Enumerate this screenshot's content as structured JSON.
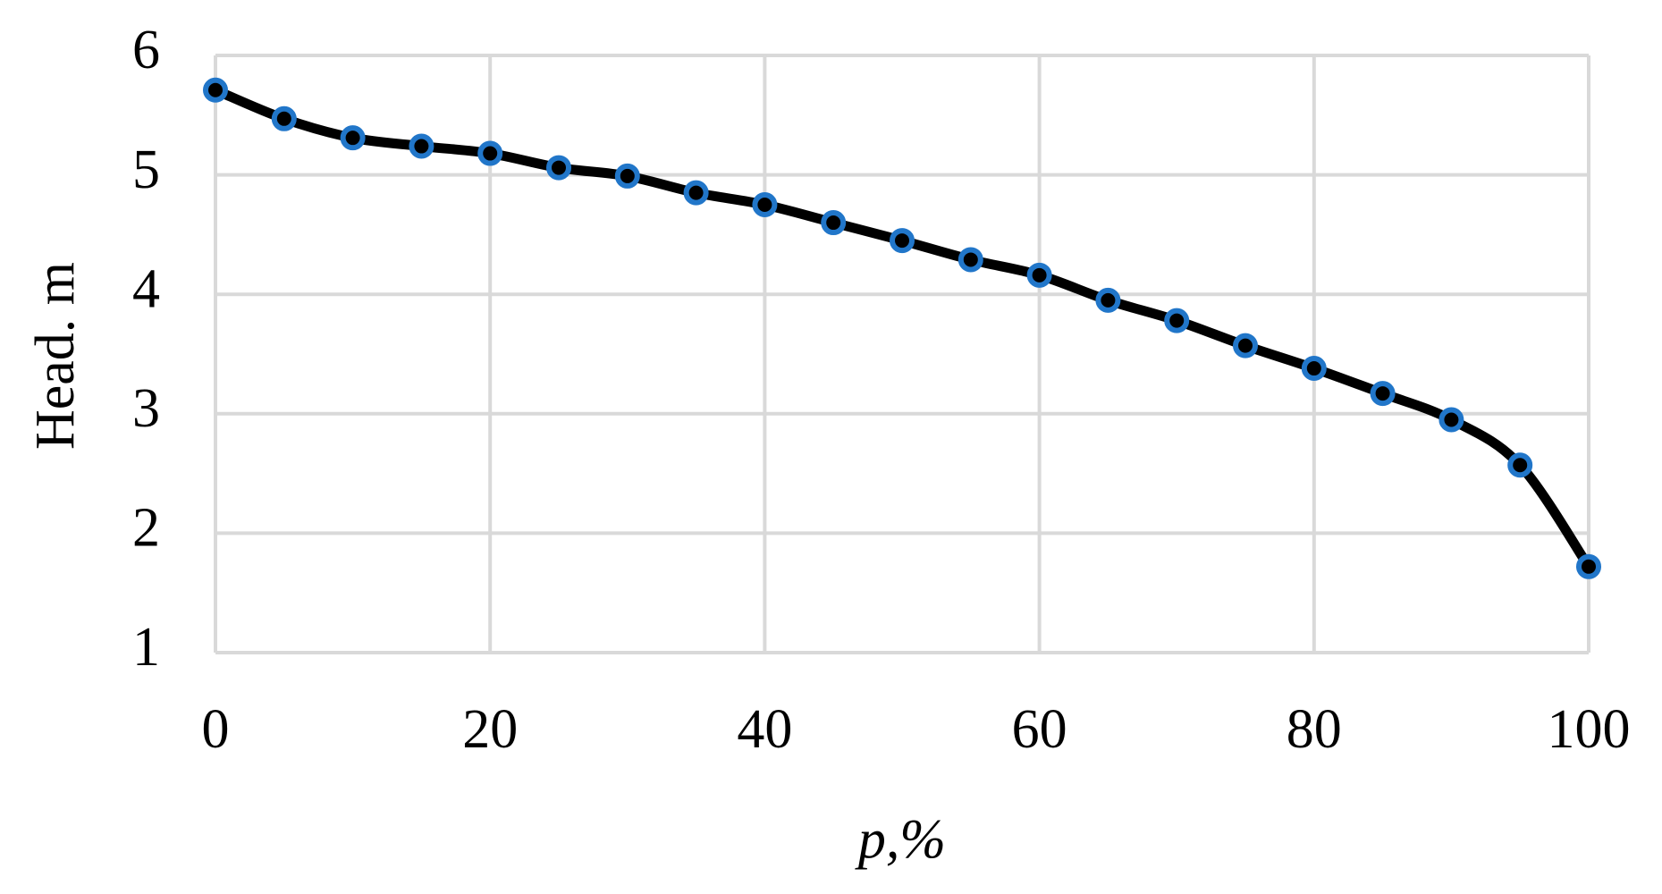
{
  "chart_data": {
    "type": "line",
    "x_label": "p,%",
    "y_label": "Head. m",
    "x": [
      0,
      5,
      10,
      15,
      20,
      25,
      30,
      35,
      40,
      45,
      50,
      55,
      60,
      65,
      70,
      75,
      80,
      85,
      90,
      95,
      100
    ],
    "series": [
      {
        "line_color": "#000000",
        "marker_color": "#2176c9",
        "values": [
          5.71,
          5.47,
          5.31,
          5.24,
          5.18,
          5.06,
          4.99,
          4.85,
          4.75,
          4.6,
          4.45,
          4.29,
          4.16,
          3.95,
          3.78,
          3.57,
          3.38,
          3.17,
          2.95,
          2.57,
          1.72
        ]
      }
    ],
    "xlim": [
      0,
      100
    ],
    "xticks": [
      0,
      20,
      40,
      60,
      80,
      100
    ],
    "ylim": [
      1,
      6
    ],
    "yticks": [
      1,
      2,
      3,
      4,
      5,
      6
    ],
    "grid": true,
    "smooth": true
  }
}
